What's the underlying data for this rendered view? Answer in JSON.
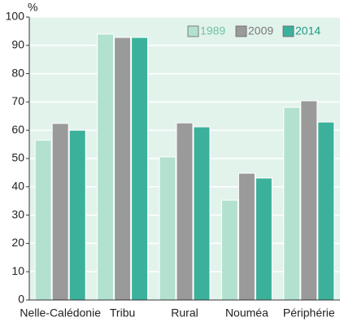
{
  "chart_data": {
    "type": "bar",
    "y_label": "%",
    "categories": [
      "Nelle-Calédonie",
      "Tribu",
      "Rural",
      "Nouméa",
      "Périphérie"
    ],
    "series": [
      {
        "name": "1989",
        "color": "#b3e1cf",
        "values": [
          56.5,
          94,
          50.6,
          35.3,
          68.1
        ]
      },
      {
        "name": "2009",
        "color": "#9a9a9a",
        "values": [
          62.4,
          92.8,
          62.6,
          44.8,
          70.4
        ]
      },
      {
        "name": "2014",
        "color": "#3bb19b",
        "values": [
          60,
          92.8,
          61.2,
          43.1,
          62.9
        ]
      }
    ],
    "ylim": [
      0,
      100
    ],
    "yticks": [
      0,
      10,
      20,
      30,
      40,
      50,
      60,
      70,
      80,
      90,
      100
    ],
    "grid": true,
    "legend": "top-right"
  }
}
